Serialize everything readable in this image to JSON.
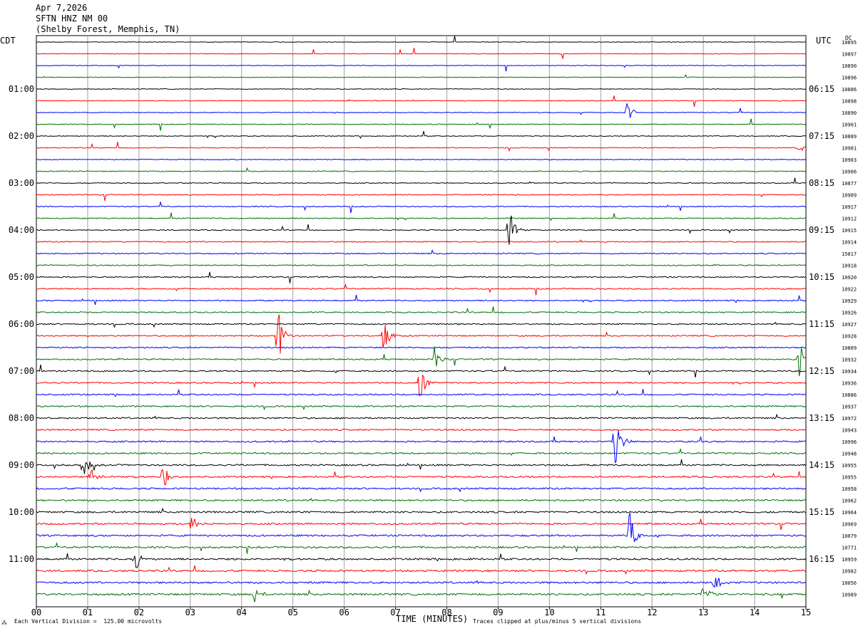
{
  "header": {
    "date": "Apr 7,2026",
    "station": "SFTN HNZ NM 00",
    "location": "(Shelby Forest, Memphis, TN)"
  },
  "left_zone": "CDT",
  "right_zone": "UTC",
  "dc_label": "DC",
  "footer": {
    "scale_note": "Each Vertical Division =  125.00 microvolts",
    "clip_note": "Traces clipped at plus/minus 5 vertical divisions",
    "xlabel": "TIME (MINUTES)"
  },
  "colors": {
    "trace_cycle": [
      "#000000",
      "#ff0000",
      "#0000ff",
      "#007000"
    ],
    "gridline": "#a0a0a0"
  },
  "chart_data": {
    "type": "line",
    "title": "SFTN HNZ NM 00",
    "xlabel": "TIME (MINUTES)",
    "ylabel": "",
    "xlim": [
      0,
      15
    ],
    "x_ticks": [
      "00",
      "01",
      "02",
      "03",
      "04",
      "05",
      "06",
      "07",
      "08",
      "09",
      "10",
      "11",
      "12",
      "13",
      "14",
      "15"
    ],
    "left_hour_labels": [
      "01:00",
      "02:00",
      "03:00",
      "04:00",
      "05:00",
      "06:00",
      "07:00",
      "08:00",
      "09:00",
      "10:00",
      "11:00"
    ],
    "right_hour_labels": [
      "06:15",
      "07:15",
      "08:15",
      "09:15",
      "10:15",
      "11:15",
      "12:15",
      "13:15",
      "14:15",
      "15:15",
      "16:15"
    ],
    "hour_label_rows": [
      4,
      8,
      12,
      16,
      20,
      24,
      28,
      32,
      36,
      40,
      44
    ],
    "dc_offsets": [
      "10895",
      "10897",
      "10890",
      "10896",
      "10886",
      "10898",
      "10890",
      "10901",
      "10889",
      "10901",
      "10903",
      "10906",
      "10877",
      "10909",
      "10917",
      "10912",
      "10915",
      "10914",
      "15017",
      "10918",
      "10920",
      "10922",
      "10929",
      "10926",
      "10927",
      "10928",
      "10809",
      "10932",
      "10934",
      "10936",
      "10886",
      "10937",
      "10972",
      "10943",
      "10996",
      "10948",
      "10955",
      "10955",
      "10958",
      "10962",
      "10964",
      "10969",
      "10079",
      "10771",
      "10959",
      "10982",
      "10056",
      "10989"
    ],
    "events": [
      {
        "row": 6,
        "minute": 11.5,
        "amp": 1.2
      },
      {
        "row": 9,
        "minute": 14.85,
        "amp": 1.0
      },
      {
        "row": 16,
        "minute": 9.2,
        "amp": 2.5
      },
      {
        "row": 25,
        "minute": 4.7,
        "amp": 3.0
      },
      {
        "row": 25,
        "minute": 6.75,
        "amp": 2.0
      },
      {
        "row": 27,
        "minute": 7.75,
        "amp": 1.2
      },
      {
        "row": 27,
        "minute": 14.85,
        "amp": 2.5
      },
      {
        "row": 29,
        "minute": 7.45,
        "amp": 3.0
      },
      {
        "row": 34,
        "minute": 11.25,
        "amp": 3.5
      },
      {
        "row": 36,
        "minute": 0.9,
        "amp": 1.5
      },
      {
        "row": 37,
        "minute": 1.05,
        "amp": 1.3
      },
      {
        "row": 37,
        "minute": 2.45,
        "amp": 1.8
      },
      {
        "row": 41,
        "minute": 3.0,
        "amp": 1.2
      },
      {
        "row": 42,
        "minute": 11.55,
        "amp": 3.0
      },
      {
        "row": 44,
        "minute": 1.9,
        "amp": 1.5
      },
      {
        "row": 46,
        "minute": 13.2,
        "amp": 1.5
      },
      {
        "row": 47,
        "minute": 13.0,
        "amp": 1.5
      },
      {
        "row": 47,
        "minute": 4.25,
        "amp": 0.9
      }
    ]
  }
}
